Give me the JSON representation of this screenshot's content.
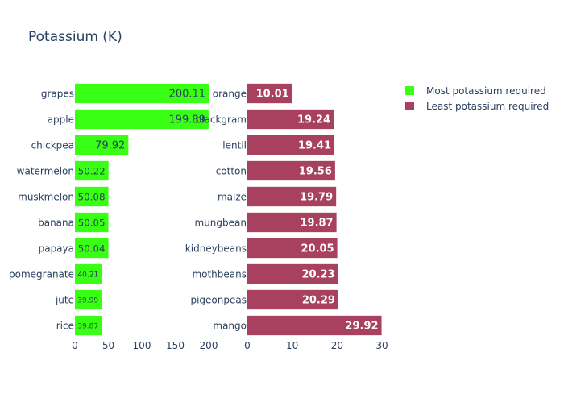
{
  "chart_data": {
    "type": "bar",
    "orientation": "horizontal",
    "title": "Potassium (K)",
    "legend": {
      "placement": "top-right",
      "entries": [
        {
          "name": "Most potassium required",
          "color": "#39ff14"
        },
        {
          "name": "Least potassium required",
          "color": "#a8405f"
        }
      ]
    },
    "panels": [
      {
        "series_name": "Most potassium required",
        "color": "#39ff14",
        "label_color": "#2a3f5f",
        "xlim": [
          0,
          200
        ],
        "xticks": [
          0,
          50,
          100,
          150,
          200
        ],
        "categories": [
          "grapes",
          "apple",
          "chickpea",
          "watermelon",
          "muskmelon",
          "banana",
          "papaya",
          "pomegranate",
          "jute",
          "rice"
        ],
        "values": [
          200.11,
          199.89,
          79.92,
          50.22,
          50.08,
          50.05,
          50.04,
          40.21,
          39.99,
          39.87
        ],
        "value_labels": [
          "200.11",
          "199.89",
          "79.92",
          "50.22",
          "50.08",
          "50.05",
          "50.04",
          "40.21",
          "39.99",
          "39.87"
        ]
      },
      {
        "series_name": "Least potassium required",
        "color": "#a8405f",
        "label_color": "#ffffff",
        "xlim": [
          0,
          30
        ],
        "xticks": [
          0,
          10,
          20,
          30
        ],
        "categories": [
          "orange",
          "blackgram",
          "lentil",
          "cotton",
          "maize",
          "mungbean",
          "kidneybeans",
          "mothbeans",
          "pigeonpeas",
          "mango"
        ],
        "values": [
          10.01,
          19.24,
          19.41,
          19.56,
          19.79,
          19.87,
          20.05,
          20.23,
          20.29,
          29.92
        ],
        "value_labels": [
          "10.01",
          "19.24",
          "19.41",
          "19.56",
          "19.79",
          "19.87",
          "20.05",
          "20.23",
          "20.29",
          "29.92"
        ]
      }
    ]
  }
}
